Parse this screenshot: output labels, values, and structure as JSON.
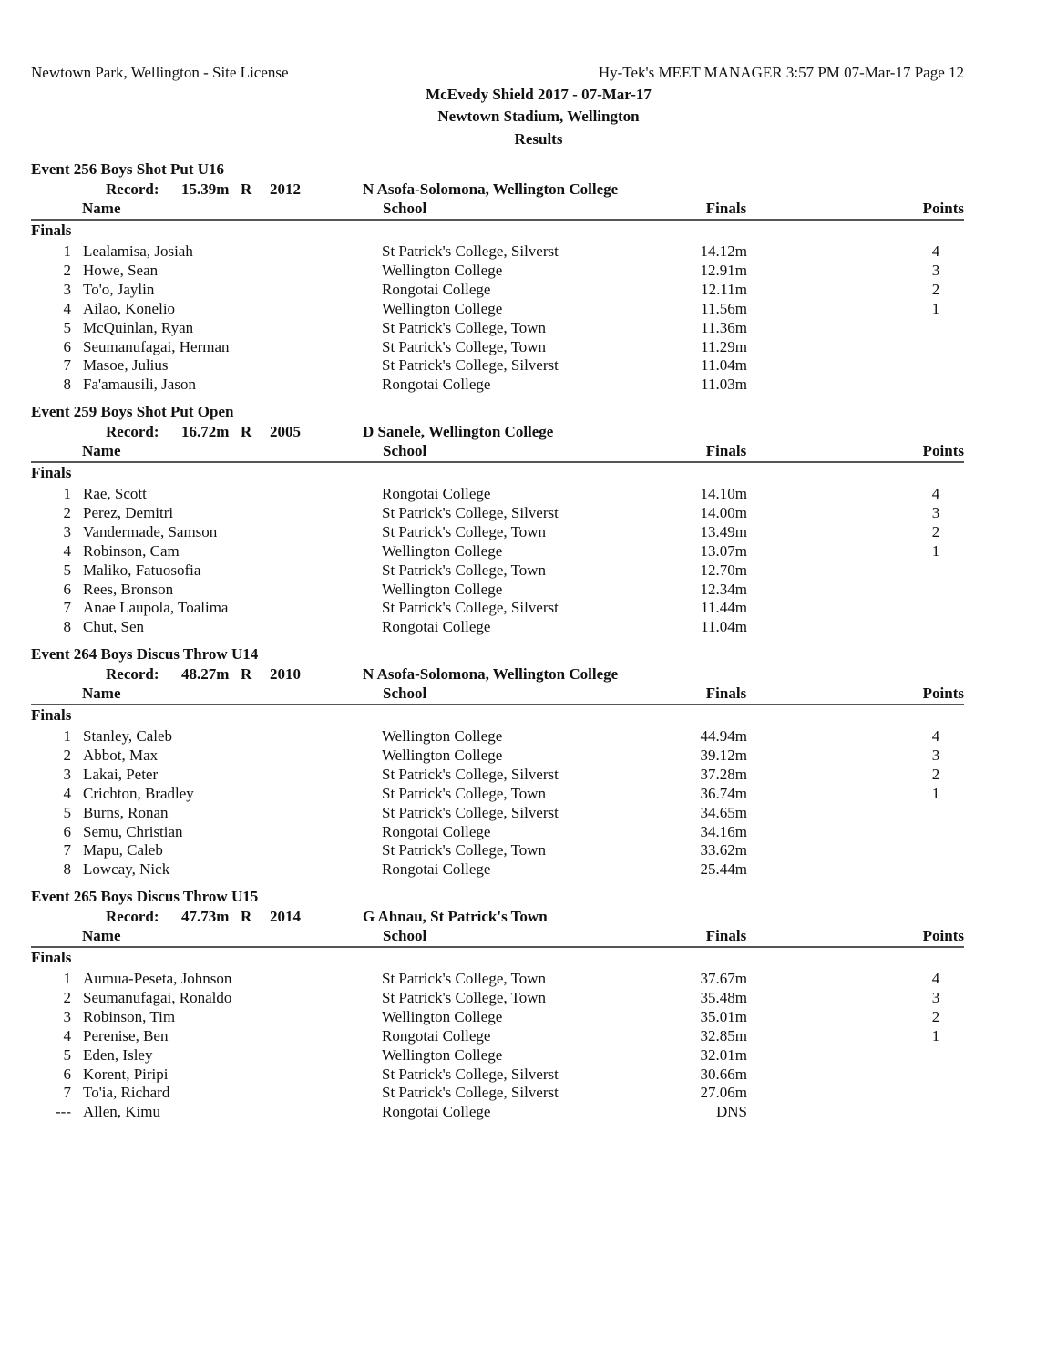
{
  "header": {
    "left": "Newtown Park, Wellington - Site License",
    "right": "Hy-Tek's MEET MANAGER  3:57 PM  07-Mar-17  Page 12",
    "title": "McEvedy Shield 2017 - 07-Mar-17",
    "venue": "Newtown Stadium, Wellington",
    "subtitle": "Results"
  },
  "labels": {
    "record": "Record:",
    "name": "Name",
    "school": "School",
    "finals": "Finals",
    "points": "Points",
    "section": "Finals"
  },
  "events": [
    {
      "title": "Event 256  Boys Shot Put U16",
      "record_mark": "15.39m",
      "record_code": "R",
      "record_year": "2012",
      "record_holder": "N Asofa-Solomona, Wellington College",
      "rows": [
        [
          "1",
          "Lealamisa, Josiah",
          "St Patrick's College, Silverst",
          "14.12m",
          "4"
        ],
        [
          "2",
          "Howe, Sean",
          "Wellington College",
          "12.91m",
          "3"
        ],
        [
          "3",
          "To'o, Jaylin",
          "Rongotai College",
          "12.11m",
          "2"
        ],
        [
          "4",
          "Ailao, Konelio",
          "Wellington College",
          "11.56m",
          "1"
        ],
        [
          "5",
          "McQuinlan, Ryan",
          "St Patrick's College, Town",
          "11.36m",
          ""
        ],
        [
          "6",
          "Seumanufagai, Herman",
          "St Patrick's College, Town",
          "11.29m",
          ""
        ],
        [
          "7",
          "Masoe, Julius",
          "St Patrick's College, Silverst",
          "11.04m",
          ""
        ],
        [
          "8",
          "Fa'amausili, Jason",
          "Rongotai College",
          "11.03m",
          ""
        ]
      ]
    },
    {
      "title": "Event 259  Boys Shot Put Open",
      "record_mark": "16.72m",
      "record_code": "R",
      "record_year": "2005",
      "record_holder": "D Sanele, Wellington College",
      "rows": [
        [
          "1",
          "Rae, Scott",
          "Rongotai College",
          "14.10m",
          "4"
        ],
        [
          "2",
          "Perez, Demitri",
          "St Patrick's College, Silverst",
          "14.00m",
          "3"
        ],
        [
          "3",
          "Vandermade, Samson",
          "St Patrick's College, Town",
          "13.49m",
          "2"
        ],
        [
          "4",
          "Robinson, Cam",
          "Wellington College",
          "13.07m",
          "1"
        ],
        [
          "5",
          "Maliko, Fatuosofia",
          "St Patrick's College, Town",
          "12.70m",
          ""
        ],
        [
          "6",
          "Rees, Bronson",
          "Wellington College",
          "12.34m",
          ""
        ],
        [
          "7",
          "Anae Laupola, Toalima",
          "St Patrick's College, Silverst",
          "11.44m",
          ""
        ],
        [
          "8",
          "Chut, Sen",
          "Rongotai College",
          "11.04m",
          ""
        ]
      ]
    },
    {
      "title": "Event 264  Boys Discus Throw U14",
      "record_mark": "48.27m",
      "record_code": "R",
      "record_year": "2010",
      "record_holder": "N Asofa-Solomona, Wellington College",
      "rows": [
        [
          "1",
          "Stanley, Caleb",
          "Wellington College",
          "44.94m",
          "4"
        ],
        [
          "2",
          "Abbot, Max",
          "Wellington College",
          "39.12m",
          "3"
        ],
        [
          "3",
          "Lakai, Peter",
          "St Patrick's College, Silverst",
          "37.28m",
          "2"
        ],
        [
          "4",
          "Crichton, Bradley",
          "St Patrick's College, Town",
          "36.74m",
          "1"
        ],
        [
          "5",
          "Burns, Ronan",
          "St Patrick's College, Silverst",
          "34.65m",
          ""
        ],
        [
          "6",
          "Semu, Christian",
          "Rongotai College",
          "34.16m",
          ""
        ],
        [
          "7",
          "Mapu, Caleb",
          "St Patrick's College, Town",
          "33.62m",
          ""
        ],
        [
          "8",
          "Lowcay, Nick",
          "Rongotai College",
          "25.44m",
          ""
        ]
      ]
    },
    {
      "title": "Event 265  Boys Discus Throw U15",
      "record_mark": "47.73m",
      "record_code": "R",
      "record_year": "2014",
      "record_holder": "G Ahnau, St Patrick's Town",
      "rows": [
        [
          "1",
          "Aumua-Peseta, Johnson",
          "St Patrick's College, Town",
          "37.67m",
          "4"
        ],
        [
          "2",
          "Seumanufagai, Ronaldo",
          "St Patrick's College, Town",
          "35.48m",
          "3"
        ],
        [
          "3",
          "Robinson, Tim",
          "Wellington College",
          "35.01m",
          "2"
        ],
        [
          "4",
          "Perenise, Ben",
          "Rongotai College",
          "32.85m",
          "1"
        ],
        [
          "5",
          "Eden, Isley",
          "Wellington College",
          "32.01m",
          ""
        ],
        [
          "6",
          "Korent, Piripi",
          "St Patrick's College, Silverst",
          "30.66m",
          ""
        ],
        [
          "7",
          "To'ia, Richard",
          "St Patrick's College, Silverst",
          "27.06m",
          ""
        ],
        [
          "---",
          "Allen, Kimu",
          "Rongotai College",
          "DNS",
          ""
        ]
      ]
    }
  ]
}
